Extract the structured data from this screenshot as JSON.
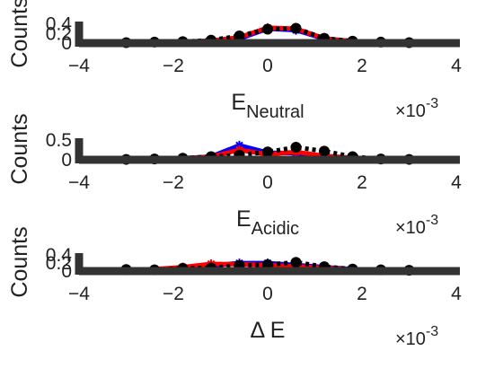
{
  "chart_data": [
    {
      "type": "line",
      "ylabel": "Counts",
      "xlabel": "",
      "xlabel_main": "E",
      "xlabel_sub": "Neutral",
      "x_exponent": "×10",
      "x_exponent_power": "-3",
      "xlim": [
        -4,
        4
      ],
      "ylim": [
        0,
        0.45
      ],
      "xticks": [
        -4,
        -2,
        0,
        2,
        4
      ],
      "yticks": [
        0,
        0.2,
        0.4
      ],
      "ytick_labels": [
        "0",
        "0.2",
        "0.4"
      ],
      "grid": false,
      "series": [
        {
          "color": "#0000ff",
          "style": "solid",
          "x": [
            -3,
            -2.4,
            -1.8,
            -1.2,
            -0.6,
            0,
            0.6,
            1.2,
            1.8,
            2.4,
            3
          ],
          "y": [
            0.005,
            0.01,
            0.02,
            0.04,
            0.09,
            0.3,
            0.27,
            0.09,
            0.04,
            0.01,
            0.005
          ]
        },
        {
          "color": "#ff0000",
          "style": "solid",
          "x": [
            -3,
            -2.4,
            -1.8,
            -1.2,
            -0.6,
            0,
            0.6,
            1.2,
            1.8,
            2.4,
            3
          ],
          "y": [
            0.01,
            0.015,
            0.03,
            0.05,
            0.12,
            0.32,
            0.3,
            0.1,
            0.04,
            0.015,
            0.01
          ]
        },
        {
          "color": "#000000",
          "style": "dotted",
          "x": [
            -3,
            -2.4,
            -1.8,
            -1.2,
            -0.6,
            0,
            0.6,
            1.2,
            1.8,
            2.4,
            3
          ],
          "y": [
            0.01,
            0.02,
            0.03,
            0.06,
            0.15,
            0.29,
            0.31,
            0.1,
            0.04,
            0.02,
            0.01
          ]
        }
      ]
    },
    {
      "type": "line",
      "ylabel": "Counts",
      "xlabel": "",
      "xlabel_main": "E",
      "xlabel_sub": "Acidic",
      "x_exponent": "×10",
      "x_exponent_power": "-3",
      "xlim": [
        -4,
        4
      ],
      "ylim": [
        0,
        0.55
      ],
      "xticks": [
        -4,
        -2,
        0,
        2,
        4
      ],
      "yticks": [
        0,
        0.5
      ],
      "ytick_labels": [
        "0",
        "0.5"
      ],
      "grid": false,
      "series": [
        {
          "color": "#0000ff",
          "style": "solid",
          "x": [
            -3,
            -2.4,
            -1.8,
            -1.2,
            -0.6,
            0,
            0.6,
            1.2,
            1.8,
            2.4,
            3
          ],
          "y": [
            0.01,
            0.02,
            0.04,
            0.08,
            0.37,
            0.18,
            0.17,
            0.08,
            0.04,
            0.02,
            0.01
          ]
        },
        {
          "color": "#ff0000",
          "style": "solid",
          "x": [
            -3,
            -2.4,
            -1.8,
            -1.2,
            -0.6,
            0,
            0.6,
            1.2,
            1.8,
            2.4,
            3
          ],
          "y": [
            0.01,
            0.02,
            0.04,
            0.08,
            0.25,
            0.14,
            0.2,
            0.1,
            0.05,
            0.02,
            0.01
          ]
        },
        {
          "color": "#000000",
          "style": "dotted",
          "x": [
            -3,
            -2.4,
            -1.8,
            -1.2,
            -0.6,
            0,
            0.6,
            1.2,
            1.8,
            2.4,
            3
          ],
          "y": [
            0.01,
            0.02,
            0.04,
            0.08,
            0.12,
            0.2,
            0.32,
            0.22,
            0.08,
            0.02,
            0.01
          ]
        }
      ]
    },
    {
      "type": "line",
      "ylabel": "Counts",
      "xlabel": "",
      "xlabel_main": "Δ E",
      "xlabel_sub": "",
      "x_exponent": "×10",
      "x_exponent_power": "-3",
      "xlim": [
        -4,
        4
      ],
      "ylim": [
        0,
        0.45
      ],
      "xticks": [
        -4,
        -2,
        0,
        2,
        4
      ],
      "yticks": [
        0,
        0.2,
        0.4
      ],
      "ytick_labels": [
        "0",
        "0.2",
        "0.4"
      ],
      "grid": false,
      "series": [
        {
          "color": "#0000ff",
          "style": "solid",
          "x": [
            -3,
            -2.4,
            -1.8,
            -1.2,
            -0.6,
            0,
            0.6,
            1.2,
            1.8,
            2.4,
            3
          ],
          "y": [
            0.01,
            0.03,
            0.08,
            0.14,
            0.2,
            0.2,
            0.15,
            0.1,
            0.05,
            0.02,
            0.01
          ]
        },
        {
          "color": "#ff0000",
          "style": "solid",
          "x": [
            -3,
            -2.4,
            -1.8,
            -1.2,
            -0.6,
            0,
            0.6,
            1.2,
            1.8,
            2.4,
            3
          ],
          "y": [
            0.02,
            0.05,
            0.1,
            0.18,
            0.17,
            0.15,
            0.12,
            0.08,
            0.04,
            0.02,
            0.01
          ]
        },
        {
          "color": "#000000",
          "style": "dotted",
          "x": [
            -3,
            -2.4,
            -1.8,
            -1.2,
            -0.6,
            0,
            0.6,
            1.2,
            1.8,
            2.4,
            3
          ],
          "y": [
            0.04,
            0.03,
            0.07,
            0.08,
            0.14,
            0.16,
            0.22,
            0.11,
            0.05,
            0.03,
            0.02
          ]
        }
      ]
    }
  ]
}
